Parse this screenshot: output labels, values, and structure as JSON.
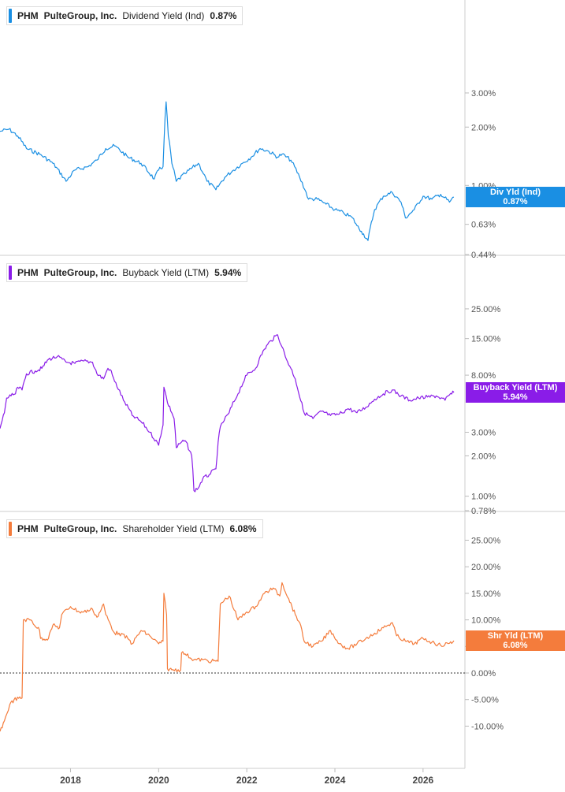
{
  "chart_data": [
    {
      "type": "line",
      "ticker": "PHM",
      "company": "PulteGroup, Inc.",
      "metric": "Dividend Yield (Ind)",
      "last_value": "0.87%",
      "badge": {
        "label": "Div Yld (Ind)",
        "value": "0.87%"
      },
      "color": "#1A8FE3",
      "yscale": "log",
      "ylim": [
        0.44,
        4.7
      ],
      "yticks": [
        {
          "label": "3.00%",
          "value": 3.0
        },
        {
          "label": "2.00%",
          "value": 2.0
        },
        {
          "label": "1.00%",
          "value": 1.0
        },
        {
          "label": "0.63%",
          "value": 0.63
        },
        {
          "label": "0.44%",
          "value": 0.44
        }
      ],
      "x": [
        2016.4,
        2016.6,
        2016.8,
        2017.0,
        2017.3,
        2017.6,
        2017.9,
        2018.1,
        2018.4,
        2018.6,
        2018.8,
        2019.0,
        2019.3,
        2019.6,
        2019.9,
        2020.0,
        2020.1,
        2020.17,
        2020.22,
        2020.3,
        2020.4,
        2020.6,
        2020.9,
        2021.1,
        2021.3,
        2021.5,
        2021.7,
        2021.9,
        2022.1,
        2022.3,
        2022.5,
        2022.7,
        2022.8,
        2023.0,
        2023.2,
        2023.4,
        2023.6,
        2023.8,
        2024.0,
        2024.2,
        2024.4,
        2024.5,
        2024.6,
        2024.75,
        2024.9,
        2025.1,
        2025.3,
        2025.5,
        2025.6,
        2025.8,
        2026.0,
        2026.2,
        2026.4,
        2026.6,
        2026.7
      ],
      "y": [
        1.9,
        1.95,
        1.8,
        1.55,
        1.45,
        1.3,
        1.05,
        1.2,
        1.25,
        1.35,
        1.55,
        1.6,
        1.4,
        1.3,
        1.08,
        1.2,
        1.25,
        2.7,
        1.8,
        1.3,
        1.05,
        1.15,
        1.3,
        1.05,
        0.95,
        1.1,
        1.2,
        1.3,
        1.4,
        1.55,
        1.5,
        1.4,
        1.45,
        1.35,
        1.1,
        0.85,
        0.85,
        0.8,
        0.75,
        0.72,
        0.68,
        0.62,
        0.58,
        0.52,
        0.75,
        0.88,
        0.92,
        0.82,
        0.68,
        0.75,
        0.88,
        0.85,
        0.9,
        0.82,
        0.87
      ]
    },
    {
      "type": "line",
      "ticker": "PHM",
      "company": "PulteGroup, Inc.",
      "metric": "Buyback Yield (LTM)",
      "last_value": "5.94%",
      "badge": {
        "label": "Buyback Yield (LTM)",
        "value": "5.94%"
      },
      "color": "#8A1CE8",
      "yscale": "log",
      "ylim": [
        0.78,
        36
      ],
      "yticks": [
        {
          "label": "25.00%",
          "value": 25.0
        },
        {
          "label": "15.00%",
          "value": 15.0
        },
        {
          "label": "8.00%",
          "value": 8.0
        },
        {
          "label": "3.00%",
          "value": 3.0
        },
        {
          "label": "2.00%",
          "value": 2.0
        },
        {
          "label": "1.00%",
          "value": 1.0
        },
        {
          "label": "0.78%",
          "value": 0.78
        }
      ],
      "x": [
        2016.4,
        2016.5,
        2016.55,
        2016.65,
        2016.75,
        2016.8,
        2016.9,
        2017.0,
        2017.2,
        2017.35,
        2017.5,
        2017.7,
        2017.9,
        2018.1,
        2018.3,
        2018.5,
        2018.6,
        2018.75,
        2018.85,
        2018.9,
        2019.0,
        2019.2,
        2019.4,
        2019.6,
        2019.8,
        2020.0,
        2020.1,
        2020.12,
        2020.2,
        2020.35,
        2020.4,
        2020.5,
        2020.6,
        2020.75,
        2020.8,
        2020.9,
        2021.0,
        2021.15,
        2021.3,
        2021.4,
        2021.6,
        2021.8,
        2022.0,
        2022.2,
        2022.4,
        2022.55,
        2022.7,
        2022.8,
        2022.9,
        2023.0,
        2023.1,
        2023.2,
        2023.3,
        2023.5,
        2023.7,
        2023.9,
        2024.1,
        2024.3,
        2024.5,
        2024.7,
        2024.9,
        2025.1,
        2025.3,
        2025.5,
        2025.7,
        2025.9,
        2026.1,
        2026.3,
        2026.5,
        2026.6,
        2026.7
      ],
      "y": [
        3.2,
        4.2,
        5.4,
        5.6,
        5.8,
        6.5,
        6.2,
        8.2,
        8.6,
        9.0,
        10.5,
        11.0,
        10.0,
        9.8,
        10.2,
        10.0,
        8.2,
        7.5,
        9.0,
        8.8,
        7.2,
        5.2,
        4.0,
        3.6,
        3.0,
        2.4,
        3.4,
        6.5,
        5.0,
        3.8,
        2.3,
        2.5,
        2.6,
        2.0,
        1.1,
        1.15,
        1.35,
        1.45,
        1.6,
        3.3,
        4.2,
        5.8,
        8.0,
        9.0,
        12.5,
        14.5,
        16.0,
        13.0,
        10.5,
        9.0,
        7.5,
        5.5,
        4.2,
        3.8,
        4.3,
        4.0,
        4.1,
        4.5,
        4.2,
        4.6,
        5.3,
        5.8,
        6.2,
        5.6,
        5.2,
        5.4,
        5.5,
        5.6,
        5.2,
        5.7,
        5.94
      ]
    },
    {
      "type": "line",
      "ticker": "PHM",
      "company": "PulteGroup, Inc.",
      "metric": "Shareholder Yield (LTM)",
      "last_value": "6.08%",
      "badge": {
        "label": "Shr Yld (LTM)",
        "value": "6.08%"
      },
      "color": "#F47C3C",
      "yscale": "linear",
      "ylim": [
        -13.5,
        27
      ],
      "zero_line": true,
      "yticks": [
        {
          "label": "25.00%",
          "value": 25.0
        },
        {
          "label": "20.00%",
          "value": 20.0
        },
        {
          "label": "15.00%",
          "value": 15.0
        },
        {
          "label": "10.00%",
          "value": 10.0
        },
        {
          "label": "5.00%",
          "value": 5.0
        },
        {
          "label": "0.00%",
          "value": 0.0
        },
        {
          "label": "-5.00%",
          "value": -5.0
        },
        {
          "label": "-10.00%",
          "value": -10.0
        }
      ],
      "x": [
        2016.4,
        2016.5,
        2016.62,
        2016.72,
        2016.9,
        2016.93,
        2017.1,
        2017.3,
        2017.32,
        2017.5,
        2017.55,
        2017.6,
        2017.75,
        2017.8,
        2018.0,
        2018.2,
        2018.3,
        2018.5,
        2018.6,
        2018.7,
        2018.75,
        2018.8,
        2019.0,
        2019.1,
        2019.3,
        2019.4,
        2019.6,
        2019.8,
        2020.0,
        2020.1,
        2020.12,
        2020.18,
        2020.2,
        2020.3,
        2020.5,
        2020.52,
        2020.6,
        2020.8,
        2021.0,
        2021.2,
        2021.25,
        2021.35,
        2021.4,
        2021.6,
        2021.8,
        2022.0,
        2022.2,
        2022.4,
        2022.6,
        2022.75,
        2022.8,
        2022.95,
        2023.1,
        2023.2,
        2023.3,
        2023.5,
        2023.7,
        2023.9,
        2024.1,
        2024.3,
        2024.5,
        2024.7,
        2024.9,
        2025.1,
        2025.3,
        2025.4,
        2025.6,
        2025.8,
        2026.0,
        2026.2,
        2026.4,
        2026.6,
        2026.7
      ],
      "y": [
        -11.0,
        -9.0,
        -6.0,
        -5.0,
        -4.7,
        10.0,
        10.0,
        8.0,
        6.5,
        6.5,
        8.0,
        9.0,
        8.5,
        11.0,
        12.5,
        11.5,
        11.5,
        12.0,
        10.5,
        12.0,
        13.0,
        11.0,
        7.5,
        7.5,
        6.5,
        5.5,
        8.0,
        7.0,
        5.5,
        6.0,
        15.0,
        11.0,
        0.8,
        0.6,
        0.6,
        3.8,
        3.6,
        2.5,
        2.5,
        2.2,
        2.3,
        2.2,
        13.0,
        14.5,
        10.0,
        11.5,
        12.5,
        15.0,
        16.0,
        14.5,
        17.0,
        14.0,
        11.0,
        9.5,
        6.0,
        5.0,
        6.0,
        8.0,
        5.5,
        4.6,
        5.5,
        6.5,
        7.5,
        8.5,
        9.5,
        7.0,
        6.0,
        5.5,
        6.5,
        5.8,
        5.2,
        5.6,
        6.08
      ]
    }
  ],
  "x_axis": {
    "ticks": [
      {
        "label": "2018",
        "value": 2018.0
      },
      {
        "label": "2020",
        "value": 2020.0
      },
      {
        "label": "2022",
        "value": 2022.0
      },
      {
        "label": "2024",
        "value": 2024.0
      },
      {
        "label": "2026",
        "value": 2026.0
      }
    ],
    "xlim": [
      2016.4,
      2026.95
    ]
  },
  "grid": false,
  "legend_placement": "top-left"
}
